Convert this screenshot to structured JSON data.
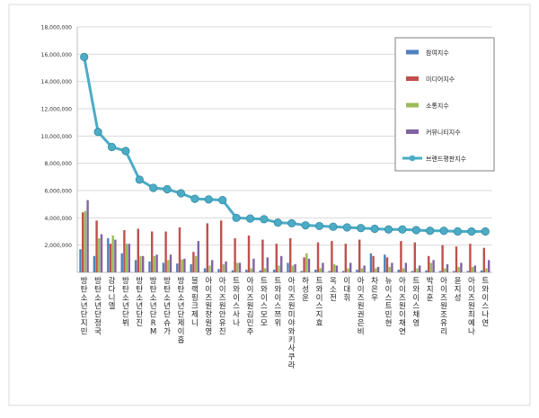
{
  "chart_data": {
    "type": "bar",
    "title": "",
    "xlabel": "",
    "ylabel": "",
    "ylim": [
      0,
      18000000
    ],
    "ytick_step": 2000000,
    "yticks": [
      "",
      "2,000,000",
      "4,000,000",
      "6,000,000",
      "8,000,000",
      "10,000,000",
      "12,000,000",
      "14,000,000",
      "16,000,000",
      "18,000,000"
    ],
    "grid": true,
    "legend_position": "top-right",
    "categories": [
      "방탄소년단 지민",
      "방탄소년단 정국",
      "강다니엘",
      "방탄소년단 뷔",
      "방탄소년단 진",
      "방탄소년단 RM",
      "방탄소년단 슈가",
      "방탄소년단 제이홉",
      "블랙핑크 제니",
      "아이즈원 장원영",
      "아이즈원 안유진",
      "트와이스 사나",
      "아이즈원 김민주",
      "트와이스 모모",
      "트와이스 쯔위",
      "아이즈원 미야와키 사쿠라",
      "하성운",
      "트와이스 지효",
      "옥소전",
      "이대휘",
      "아이즈원 권은비",
      "차은우",
      "뉴이스트 민현",
      "아이즈원 이채연",
      "트와이스 채영",
      "박지훈",
      "아이즈원 조유리",
      "윤지성",
      "아이즈원 최예나",
      "트와이스 나연"
    ],
    "series": [
      {
        "name": "참여지수",
        "color": "#4f81bd",
        "values": [
          1700000,
          1200000,
          2500000,
          1400000,
          900000,
          800000,
          700000,
          650000,
          600000,
          300000,
          250000,
          150000,
          200000,
          150000,
          200000,
          700000,
          100000,
          200000,
          100000,
          100000,
          200000,
          1400000,
          1300000,
          200000,
          100000,
          150000,
          100000,
          100000,
          100000,
          150000
        ]
      },
      {
        "name": "미디어지수",
        "color": "#c0504d",
        "values": [
          4400000,
          3800000,
          2100000,
          3100000,
          3200000,
          3000000,
          3000000,
          3300000,
          1500000,
          3600000,
          3800000,
          2500000,
          2700000,
          2400000,
          2100000,
          2500000,
          1100000,
          2200000,
          2300000,
          2100000,
          2400000,
          1200000,
          1100000,
          2300000,
          2200000,
          1200000,
          2000000,
          1900000,
          2100000,
          1800000
        ]
      },
      {
        "name": "소통지수",
        "color": "#9bbb59",
        "values": [
          4500000,
          2500000,
          2700000,
          2100000,
          1200000,
          1200000,
          900000,
          950000,
          1200000,
          500000,
          600000,
          700000,
          300000,
          300000,
          500000,
          500000,
          1400000,
          300000,
          600000,
          300000,
          300000,
          300000,
          400000,
          300000,
          300000,
          700000,
          300000,
          400000,
          400000,
          300000
        ]
      },
      {
        "name": "커뮤니티지수",
        "color": "#8064a2",
        "values": [
          5300000,
          2800000,
          2400000,
          2100000,
          1200000,
          1300000,
          1300000,
          1000000,
          2300000,
          900000,
          800000,
          700000,
          1000000,
          1100000,
          1200000,
          600000,
          1000000,
          700000,
          500000,
          700000,
          500000,
          400000,
          700000,
          700000,
          500000,
          900000,
          600000,
          700000,
          500000,
          900000
        ]
      },
      {
        "name": "브랜드평판지수",
        "color": "#4bacc6",
        "type": "line",
        "values": [
          15800000,
          10300000,
          9200000,
          8900000,
          6800000,
          6200000,
          6100000,
          5800000,
          5400000,
          5350000,
          5300000,
          4000000,
          3950000,
          3900000,
          3650000,
          3600000,
          3450000,
          3400000,
          3350000,
          3300000,
          3250000,
          3200000,
          3150000,
          3150000,
          3100000,
          3050000,
          3050000,
          3000000,
          3000000,
          3000000
        ]
      }
    ]
  }
}
